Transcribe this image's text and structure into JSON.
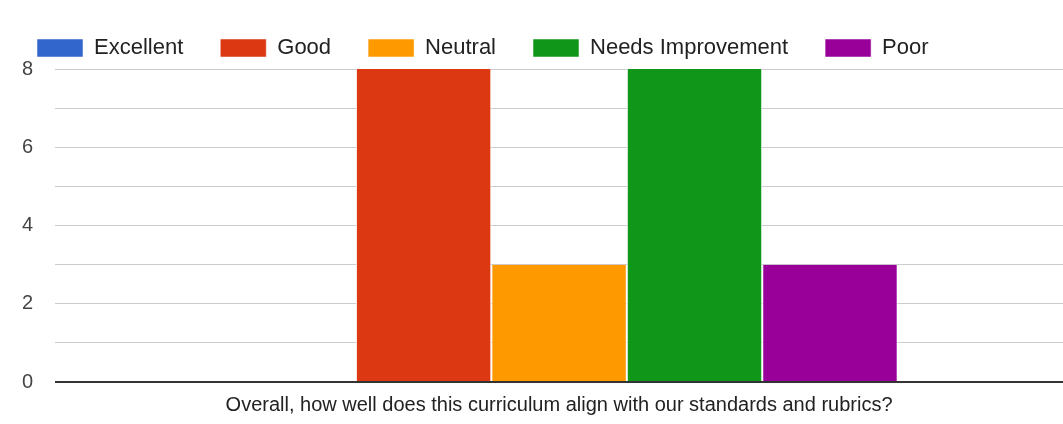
{
  "chart_data": {
    "type": "bar",
    "categories": [
      "Overall, how well does this curriculum align with our standards and rubrics?"
    ],
    "series": [
      {
        "name": "Excellent",
        "color": "#3366cc",
        "values": [
          0
        ]
      },
      {
        "name": "Good",
        "color": "#dc3912",
        "values": [
          8
        ]
      },
      {
        "name": "Neutral",
        "color": "#ff9900",
        "values": [
          3
        ]
      },
      {
        "name": "Needs Improvement",
        "color": "#109618",
        "values": [
          8
        ]
      },
      {
        "name": "Poor",
        "color": "#990099",
        "values": [
          3
        ]
      }
    ],
    "ylim": [
      0,
      8
    ],
    "yticks": [
      0,
      {
        "value": 1,
        "label": null
      },
      2,
      {
        "value": 3,
        "label": null
      },
      4,
      {
        "value": 5,
        "label": null
      },
      6,
      {
        "value": 7,
        "label": null
      },
      8
    ],
    "grid": "y",
    "legend": "top"
  }
}
